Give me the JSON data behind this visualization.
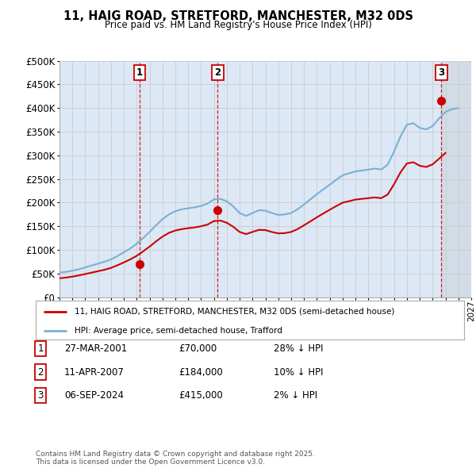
{
  "title": "11, HAIG ROAD, STRETFORD, MANCHESTER, M32 0DS",
  "subtitle": "Price paid vs. HM Land Registry's House Price Index (HPI)",
  "ylabel_ticks": [
    "£0",
    "£50K",
    "£100K",
    "£150K",
    "£200K",
    "£250K",
    "£300K",
    "£350K",
    "£400K",
    "£450K",
    "£500K"
  ],
  "ytick_values": [
    0,
    50000,
    100000,
    150000,
    200000,
    250000,
    300000,
    350000,
    400000,
    450000,
    500000
  ],
  "ylim": [
    0,
    500000
  ],
  "xlim_start": 1995.0,
  "xlim_end": 2027.0,
  "sale1_date": 2001.23,
  "sale1_price": 70000,
  "sale1_label": "1",
  "sale2_date": 2007.28,
  "sale2_price": 184000,
  "sale2_label": "2",
  "sale3_date": 2024.68,
  "sale3_price": 415000,
  "sale3_label": "3",
  "legend_line1": "11, HAIG ROAD, STRETFORD, MANCHESTER, M32 0DS (semi-detached house)",
  "legend_line2": "HPI: Average price, semi-detached house, Trafford",
  "table_rows": [
    [
      "1",
      "27-MAR-2001",
      "£70,000",
      "28% ↓ HPI"
    ],
    [
      "2",
      "11-APR-2007",
      "£184,000",
      "10% ↓ HPI"
    ],
    [
      "3",
      "06-SEP-2024",
      "£415,000",
      "2% ↓ HPI"
    ]
  ],
  "footnote": "Contains HM Land Registry data © Crown copyright and database right 2025.\nThis data is licensed under the Open Government Licence v3.0.",
  "line_color_red": "#cc0000",
  "line_color_blue": "#7ab0d4",
  "grid_color": "#cccccc",
  "bg_color": "#ffffff",
  "plot_bg_color": "#dce8f5"
}
